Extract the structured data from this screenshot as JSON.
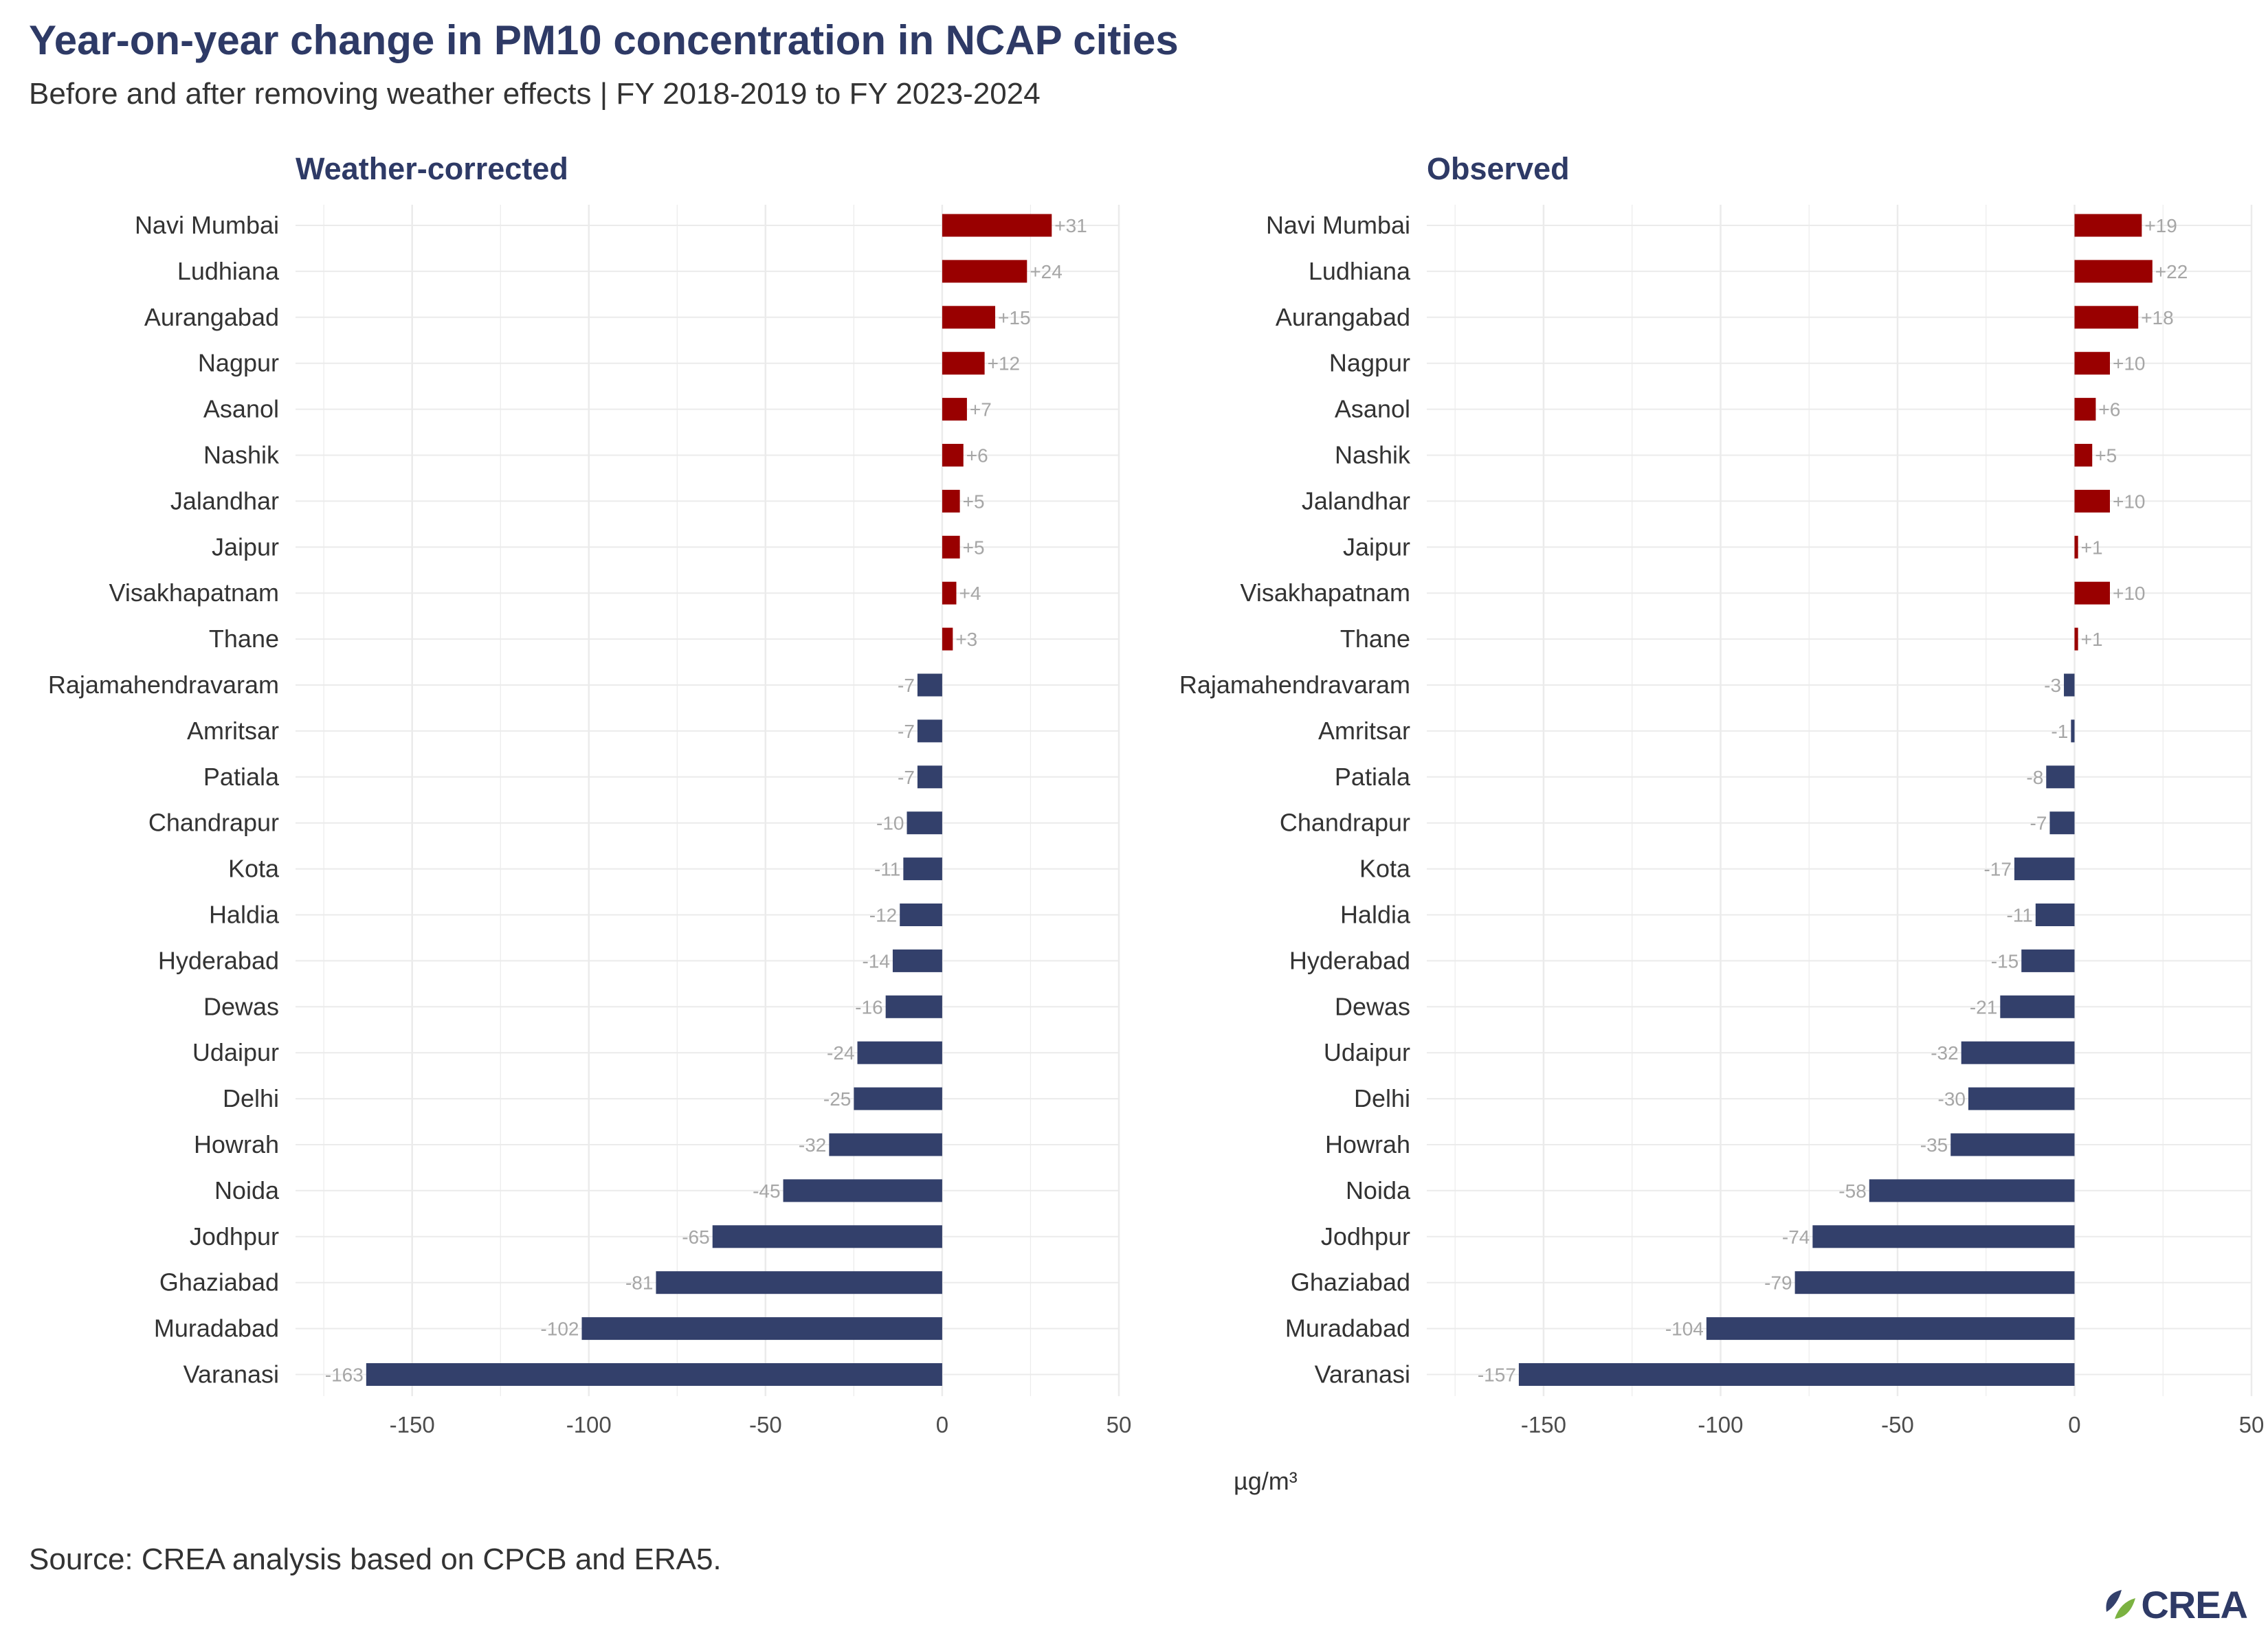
{
  "title": "Year-on-year change in PM10 concentration in NCAP cities",
  "subtitle": "Before and after removing weather effects | FY 2018-2019 to FY 2023-2024",
  "source": "Source: CREA analysis based on CPCB and ERA5.",
  "logo_text": "CREA",
  "x_unit": "µg/m³",
  "colors": {
    "increase": "#990000",
    "decrease": "#33406b",
    "grid": "#ebebeb",
    "value_label": "#a6a6a6"
  },
  "chart_data": [
    {
      "type": "bar",
      "orientation": "horizontal",
      "title": "Weather-corrected",
      "xlabel": "µg/m³",
      "xlim": [
        -183,
        50
      ],
      "x_ticks": [
        -150,
        -100,
        -50,
        0,
        50
      ],
      "grid": true,
      "categories": [
        "Navi Mumbai",
        "Ludhiana",
        "Aurangabad",
        "Nagpur",
        "Asanol",
        "Nashik",
        "Jalandhar",
        "Jaipur",
        "Visakhapatnam",
        "Thane",
        "Rajamahendravaram",
        "Amritsar",
        "Patiala",
        "Chandrapur",
        "Kota",
        "Haldia",
        "Hyderabad",
        "Dewas",
        "Udaipur",
        "Delhi",
        "Howrah",
        "Noida",
        "Jodhpur",
        "Ghaziabad",
        "Muradabad",
        "Varanasi"
      ],
      "values": [
        31,
        24,
        15,
        12,
        7,
        6,
        5,
        5,
        4,
        3,
        -7,
        -7,
        -7,
        -10,
        -11,
        -12,
        -14,
        -16,
        -24,
        -25,
        -32,
        -45,
        -65,
        -81,
        -102,
        -163
      ],
      "labels": [
        "+31",
        "+24",
        "+15",
        "+12",
        "+7",
        "+6",
        "+5",
        "+5",
        "+4",
        "+3",
        "-7",
        "-7",
        "-7",
        "-10",
        "-11",
        "-12",
        "-14",
        "-16",
        "-24",
        "-25",
        "-32",
        "-45",
        "-65",
        "-81",
        "-102",
        "-163"
      ]
    },
    {
      "type": "bar",
      "orientation": "horizontal",
      "title": "Observed",
      "xlabel": "µg/m³",
      "xlim": [
        -183,
        50
      ],
      "x_ticks": [
        -150,
        -100,
        -50,
        0,
        50
      ],
      "grid": true,
      "categories": [
        "Navi Mumbai",
        "Ludhiana",
        "Aurangabad",
        "Nagpur",
        "Asanol",
        "Nashik",
        "Jalandhar",
        "Jaipur",
        "Visakhapatnam",
        "Thane",
        "Rajamahendravaram",
        "Amritsar",
        "Patiala",
        "Chandrapur",
        "Kota",
        "Haldia",
        "Hyderabad",
        "Dewas",
        "Udaipur",
        "Delhi",
        "Howrah",
        "Noida",
        "Jodhpur",
        "Ghaziabad",
        "Muradabad",
        "Varanasi"
      ],
      "values": [
        19,
        22,
        18,
        10,
        6,
        5,
        10,
        1,
        10,
        1,
        -3,
        -1,
        -8,
        -7,
        -17,
        -11,
        -15,
        -21,
        -32,
        -30,
        -35,
        -58,
        -74,
        -79,
        -104,
        -157
      ],
      "labels": [
        "+19",
        "+22",
        "+18",
        "+10",
        "+6",
        "+5",
        "+10",
        "+1",
        "+10",
        "+1",
        "-3",
        "-1",
        "-8",
        "-7",
        "-17",
        "-11",
        "-15",
        "-21",
        "-32",
        "-30",
        "-35",
        "-58",
        "-74",
        "-79",
        "-104",
        "-157"
      ]
    }
  ]
}
